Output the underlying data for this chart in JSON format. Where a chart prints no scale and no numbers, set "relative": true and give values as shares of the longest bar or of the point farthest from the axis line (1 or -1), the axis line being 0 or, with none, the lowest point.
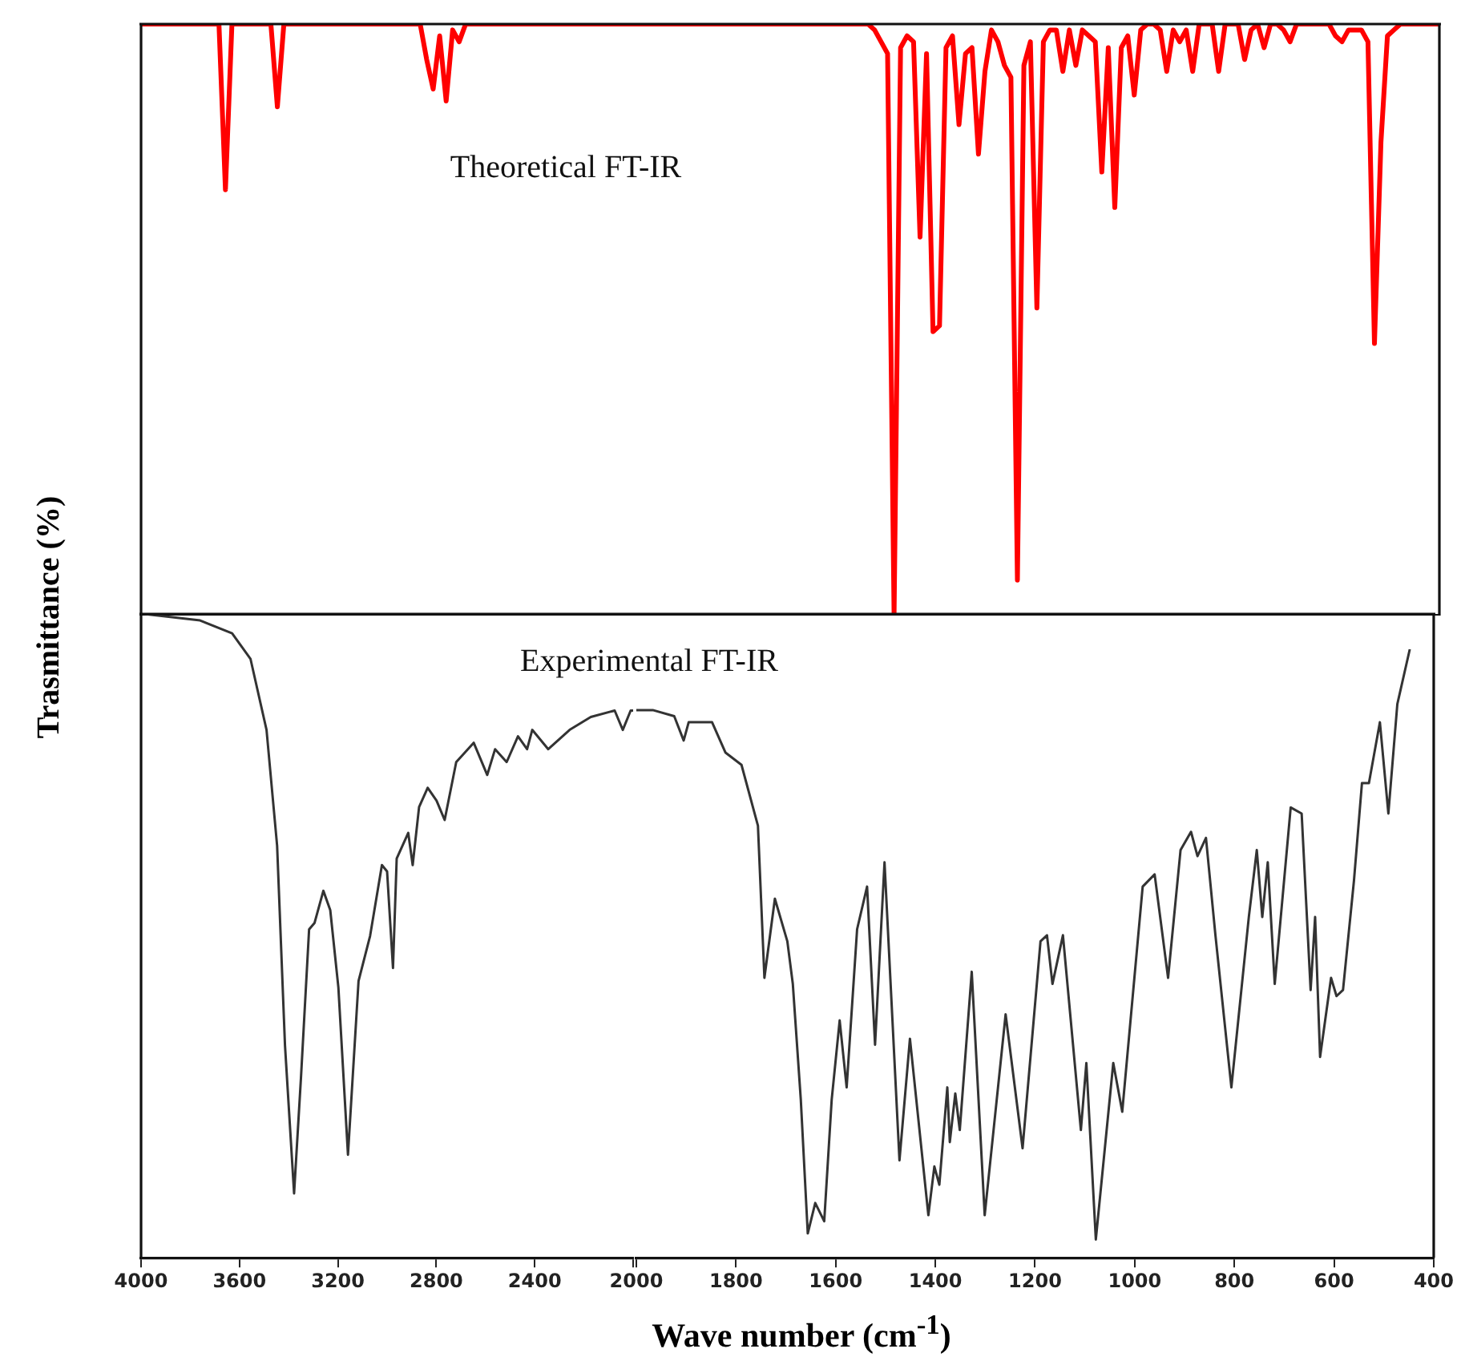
{
  "chart_data": [
    {
      "type": "line",
      "relative": true,
      "ylabel": "Trasmittance (%)",
      "annotations": [
        "Theoretical FT-IR"
      ],
      "tick_labels": false,
      "legend": false,
      "grid": false,
      "categories": [
        null,
        null,
        null,
        null,
        null,
        null,
        null,
        null,
        null,
        null,
        null,
        null,
        null,
        null,
        null,
        null,
        null,
        null,
        null,
        null,
        null,
        null,
        null,
        null,
        null,
        null,
        null,
        null,
        null,
        null,
        null,
        null,
        null,
        null,
        null,
        null,
        null,
        null,
        null,
        null,
        null,
        null,
        null,
        null,
        null,
        null,
        null,
        null,
        null,
        null,
        null,
        null,
        null,
        null,
        null,
        null,
        null,
        null,
        null,
        null,
        null,
        null,
        null,
        null,
        null,
        null,
        null,
        null,
        null,
        null,
        null,
        null,
        null,
        null,
        null,
        null,
        null,
        null,
        null,
        null,
        null,
        null,
        null,
        null,
        null,
        null,
        null,
        null,
        null,
        null,
        null,
        null,
        null,
        null,
        null,
        null,
        null,
        null,
        null,
        null,
        null,
        null,
        null,
        null,
        null,
        null,
        null,
        null,
        null,
        null,
        null,
        null,
        null,
        null,
        null,
        null,
        null,
        null,
        null,
        null,
        null,
        null,
        null,
        null,
        null,
        null,
        null,
        null,
        null,
        null,
        null,
        null,
        null,
        null,
        null,
        null,
        null,
        null,
        null,
        null,
        null,
        null,
        null,
        null,
        null,
        null,
        null,
        null,
        null,
        null,
        null,
        null,
        null,
        null,
        null,
        null,
        null,
        null,
        null,
        null,
        null,
        null,
        null,
        null,
        null,
        null,
        null,
        null,
        null,
        null,
        null,
        null,
        null,
        null,
        null,
        null,
        null,
        null,
        null,
        null,
        null,
        null,
        null,
        null,
        null,
        null,
        null,
        null,
        null,
        null,
        null,
        null,
        null,
        null,
        null,
        null,
        null,
        null,
        null,
        null,
        null
      ],
      "series": [
        {
          "color": "#ff0000",
          "values": [
            1,
            1,
            1,
            1,
            1,
            1,
            1,
            1,
            1,
            1,
            1,
            1,
            1,
            0.72,
            1,
            1,
            1,
            1,
            1,
            1,
            1,
            0.86,
            1,
            1,
            1,
            1,
            1,
            1,
            1,
            1,
            1,
            1,
            1,
            1,
            1,
            1,
            1,
            1,
            1,
            1,
            1,
            1,
            1,
            1,
            0.94,
            0.89,
            0.98,
            0.87,
            0.99,
            0.97,
            1,
            1,
            1,
            1,
            1,
            1,
            1,
            1,
            1,
            1,
            1,
            1,
            1,
            1,
            1,
            1,
            1,
            1,
            1,
            1,
            1,
            1,
            1,
            1,
            1,
            1,
            1,
            1,
            1,
            1,
            1,
            1,
            1,
            1,
            1,
            1,
            1,
            1,
            1,
            1,
            1,
            1,
            1,
            1,
            1,
            1,
            1,
            1,
            1,
            1,
            1,
            1,
            1,
            1,
            1,
            1,
            1,
            1,
            1,
            1,
            1,
            1,
            1,
            0.99,
            0.97,
            0.95,
            0,
            0.96,
            0.98,
            0.97,
            0.64,
            0.95,
            0.48,
            0.49,
            0.96,
            0.98,
            0.83,
            0.95,
            0.96,
            0.78,
            0.92,
            0.99,
            0.97,
            0.93,
            0.91,
            0.06,
            0.93,
            0.97,
            0.52,
            0.97,
            0.99,
            0.99,
            0.92,
            0.99,
            0.93,
            0.99,
            0.98,
            0.97,
            0.75,
            0.96,
            0.69,
            0.96,
            0.98,
            0.88,
            0.99,
            1,
            1,
            0.99,
            0.92,
            0.99,
            0.97,
            0.99,
            0.92,
            1,
            1,
            1,
            0.92,
            1,
            1,
            1,
            0.94,
            0.99,
            1,
            0.96,
            1,
            1,
            0.99,
            0.97,
            1,
            1,
            1,
            1,
            1,
            1,
            0.98,
            0.97,
            0.99,
            0.99,
            0.99,
            0.97,
            0.46,
            0.8,
            0.98,
            0.99,
            1,
            1,
            1,
            1,
            1,
            1,
            1
          ]
        }
      ]
    },
    {
      "type": "line",
      "relative": true,
      "xlim": [
        4000,
        2000
      ],
      "xticks": [
        4000,
        3600,
        3200,
        2800,
        2400,
        {
          "value": 2000,
          "label": null
        }
      ],
      "tick_labels": "x",
      "legend": false,
      "grid": false,
      "series": [
        {
          "color": "#333333",
          "x": [
            3987,
            3760,
            3630,
            3555,
            3490,
            3447,
            3415,
            3378,
            3350,
            3317,
            3295,
            3259,
            3231,
            3198,
            3159,
            3116,
            3069,
            3021,
            3000,
            2976,
            2961,
            2914,
            2896,
            2870,
            2835,
            2799,
            2766,
            2719,
            2648,
            2593,
            2561,
            2514,
            2468,
            2431,
            2410,
            2345,
            2258,
            2172,
            2075,
            2042,
            2010,
            2000
          ],
          "values": [
            1,
            0.99,
            0.97,
            0.93,
            0.82,
            0.64,
            0.33,
            0.1,
            0.28,
            0.51,
            0.52,
            0.57,
            0.54,
            0.42,
            0.16,
            0.43,
            0.5,
            0.61,
            0.6,
            0.45,
            0.62,
            0.66,
            0.61,
            0.7,
            0.73,
            0.71,
            0.68,
            0.77,
            0.8,
            0.75,
            0.79,
            0.77,
            0.81,
            0.79,
            0.82,
            0.79,
            0.82,
            0.84,
            0.85,
            0.82,
            0.85,
            0.85
          ]
        }
      ]
    },
    {
      "type": "line",
      "relative": true,
      "xlabel": "Wave number (cm$^{-1}$)",
      "annotations": [
        "Experimental FT-IR"
      ],
      "xlim": [
        2000,
        400
      ],
      "xticks": [
        2000,
        1800,
        1600,
        1400,
        1200,
        1000,
        800,
        600,
        400
      ],
      "tick_labels": "x",
      "legend": false,
      "grid": false,
      "series": [
        {
          "color": "#333333",
          "x": [
            2000,
            1967,
            1924,
            1905,
            1895,
            1848,
            1821,
            1789,
            1756,
            1743,
            1722,
            1697,
            1686,
            1670,
            1656,
            1641,
            1623,
            1608,
            1592,
            1578,
            1557,
            1537,
            1521,
            1502,
            1472,
            1451,
            1414,
            1402,
            1392,
            1376,
            1371,
            1360,
            1351,
            1327,
            1301,
            1259,
            1225,
            1189,
            1176,
            1165,
            1144,
            1108,
            1097,
            1078,
            1043,
            1025,
            984,
            960,
            933,
            908,
            887,
            874,
            857,
            838,
            806,
            771,
            755,
            744,
            733,
            719,
            687,
            665,
            647,
            638,
            628,
            606,
            595,
            582,
            560,
            544,
            530,
            508,
            491,
            473,
            448
          ],
          "values": [
            0.9,
            0.9,
            0.89,
            0.85,
            0.88,
            0.88,
            0.83,
            0.81,
            0.71,
            0.46,
            0.59,
            0.52,
            0.45,
            0.26,
            0.04,
            0.09,
            0.06,
            0.26,
            0.39,
            0.28,
            0.54,
            0.61,
            0.35,
            0.65,
            0.16,
            0.36,
            0.07,
            0.15,
            0.12,
            0.28,
            0.19,
            0.27,
            0.21,
            0.47,
            0.07,
            0.4,
            0.18,
            0.52,
            0.53,
            0.45,
            0.53,
            0.21,
            0.32,
            0.03,
            0.32,
            0.24,
            0.61,
            0.63,
            0.46,
            0.67,
            0.7,
            0.66,
            0.69,
            0.53,
            0.28,
            0.56,
            0.67,
            0.56,
            0.65,
            0.45,
            0.74,
            0.73,
            0.44,
            0.56,
            0.33,
            0.46,
            0.43,
            0.44,
            0.62,
            0.78,
            0.78,
            0.88,
            0.73,
            0.91,
            1
          ]
        }
      ]
    }
  ]
}
